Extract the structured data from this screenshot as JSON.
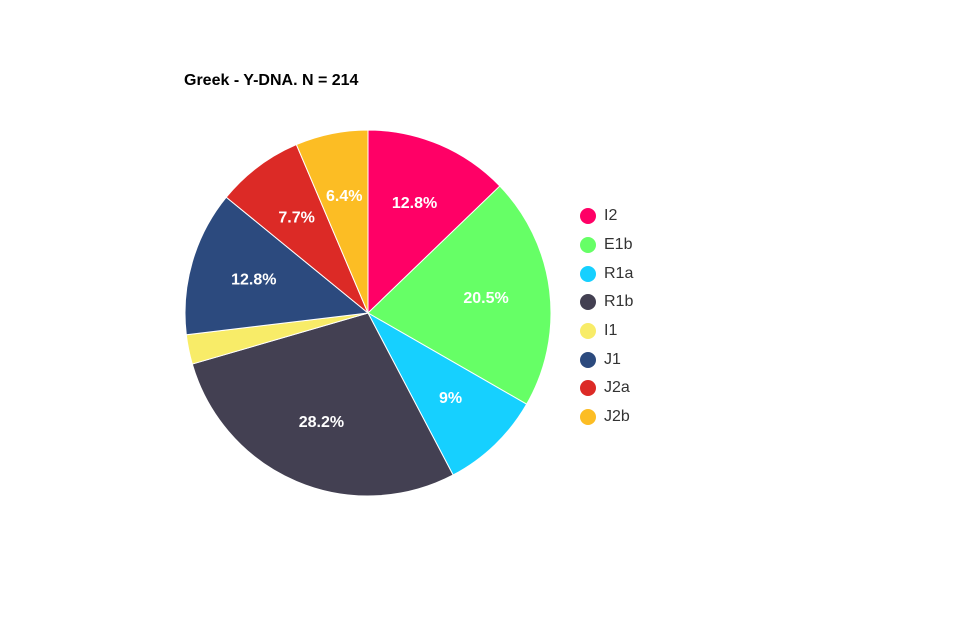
{
  "chart_data": {
    "type": "pie",
    "title": "Greek - Y-DNA. N = 214",
    "legend_position": "right",
    "slices": [
      {
        "name": "I2",
        "value": 12.8,
        "label": "12.8%",
        "color": "#ff0066"
      },
      {
        "name": "E1b",
        "value": 20.5,
        "label": "20.5%",
        "color": "#66ff66"
      },
      {
        "name": "R1a",
        "value": 9.0,
        "label": "9%",
        "color": "#16d0ff"
      },
      {
        "name": "R1b",
        "value": 28.2,
        "label": "28.2%",
        "color": "#434052"
      },
      {
        "name": "I1",
        "value": 2.6,
        "label": "",
        "color": "#f8ec68"
      },
      {
        "name": "J1",
        "value": 12.8,
        "label": "12.8%",
        "color": "#2c4a7e"
      },
      {
        "name": "J2a",
        "value": 7.7,
        "label": "7.7%",
        "color": "#dc2a26"
      },
      {
        "name": "J2b",
        "value": 6.4,
        "label": "6.4%",
        "color": "#fcbd24"
      }
    ]
  }
}
